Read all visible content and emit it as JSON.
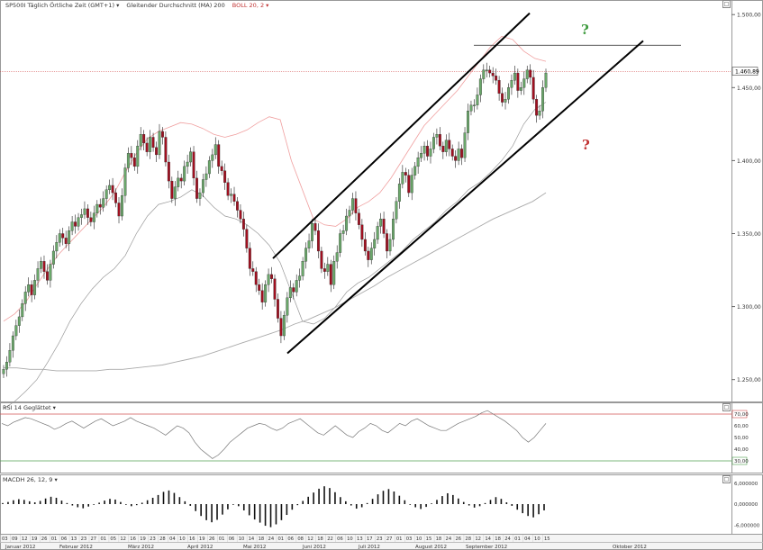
{
  "header": {
    "symbol": "SP500I Täglich Örtliche Zeit (GMT+1)",
    "indicator_ma": "Gleitender Durchschnitt (MA) 200",
    "indicator_boll": "BOLL 20, 2"
  },
  "rsi_header": "RSI 14 Geglättet",
  "macd_header": "MACDH 26, 12, 9",
  "question_up": "?",
  "question_down": "?",
  "colors": {
    "up": "#6aa76a",
    "down": "#a01020",
    "boll": "#f0a0a0",
    "ma": "#aaaaaa",
    "rsi_hi": "#d05050",
    "rsi_lo": "#50a050",
    "q_up": "#3c9a3c",
    "q_down": "#c03030"
  },
  "icons": {
    "close": "close-icon",
    "dropdown": "dropdown-arrow-icon"
  },
  "close_glyph": "□",
  "chart_data": [
    {
      "type": "candlestick",
      "title": "SP500I",
      "ylim": [
        1235,
        1510
      ],
      "y_ticks": [
        "1.250,00",
        "1.300,00",
        "1.350,00",
        "1.400,00",
        "1.450,00",
        "1.500,00"
      ],
      "current_price_label": "1.460,89",
      "current_price": 1460.9,
      "resistance_level": 1479,
      "x_day_labels": [
        "03",
        "09",
        "12",
        "19",
        "26",
        "01",
        "06",
        "13",
        "23",
        "27",
        "01",
        "05",
        "12",
        "16",
        "19",
        "23",
        "28",
        "04",
        "10",
        "16",
        "19",
        "26",
        "01",
        "06",
        "10",
        "14",
        "18",
        "24",
        "01",
        "06",
        "08",
        "12",
        "18",
        "22",
        "06",
        "10",
        "13",
        "17",
        "23",
        "27",
        "01",
        "03",
        "10",
        "15",
        "18",
        "24",
        "26",
        "28",
        "12",
        "14",
        "18",
        "24",
        "01",
        "04",
        "10",
        "15"
      ],
      "x_month_labels": [
        "Januar 2012",
        "Februar 2012",
        "März 2012",
        "April 2012",
        "Mai 2012",
        "Juni 2012",
        "Juli 2012",
        "August 2012",
        "September 2012",
        "Oktober 2012"
      ],
      "closes": [
        1257,
        1262,
        1270,
        1280,
        1287,
        1293,
        1302,
        1310,
        1315,
        1308,
        1318,
        1326,
        1331,
        1324,
        1318,
        1329,
        1338,
        1344,
        1350,
        1347,
        1343,
        1352,
        1358,
        1355,
        1361,
        1363,
        1367,
        1361,
        1358,
        1364,
        1370,
        1368,
        1374,
        1380,
        1383,
        1378,
        1371,
        1362,
        1376,
        1395,
        1405,
        1402,
        1396,
        1410,
        1418,
        1412,
        1406,
        1416,
        1409,
        1404,
        1420,
        1416,
        1399,
        1386,
        1374,
        1382,
        1388,
        1386,
        1396,
        1399,
        1406,
        1388,
        1374,
        1378,
        1387,
        1391,
        1400,
        1404,
        1411,
        1396,
        1393,
        1385,
        1376,
        1377,
        1372,
        1366,
        1360,
        1353,
        1340,
        1326,
        1324,
        1315,
        1311,
        1303,
        1315,
        1322,
        1319,
        1305,
        1292,
        1280,
        1294,
        1306,
        1313,
        1310,
        1318,
        1321,
        1331,
        1340,
        1345,
        1357,
        1352,
        1338,
        1326,
        1324,
        1329,
        1315,
        1331,
        1337,
        1350,
        1352,
        1362,
        1366,
        1374,
        1364,
        1356,
        1346,
        1338,
        1332,
        1340,
        1346,
        1355,
        1360,
        1350,
        1338,
        1346,
        1360,
        1372,
        1384,
        1392,
        1390,
        1378,
        1390,
        1396,
        1402,
        1405,
        1410,
        1403,
        1408,
        1416,
        1418,
        1410,
        1406,
        1414,
        1408,
        1403,
        1400,
        1408,
        1402,
        1419,
        1434,
        1438,
        1438,
        1445,
        1456,
        1462,
        1462,
        1460,
        1458,
        1455,
        1446,
        1440,
        1442,
        1450,
        1455,
        1460,
        1448,
        1450,
        1456,
        1462,
        1457,
        1442,
        1431,
        1434,
        1450,
        1460
      ],
      "ma200": [
        1258,
        1258,
        1257,
        1257,
        1256,
        1256,
        1256,
        1256,
        1257,
        1257,
        1258,
        1259,
        1260,
        1262,
        1264,
        1266,
        1269,
        1272,
        1275,
        1278,
        1281,
        1284,
        1288,
        1291,
        1295,
        1299,
        1304,
        1309,
        1314,
        1320,
        1325,
        1330,
        1335,
        1340,
        1345,
        1350,
        1355,
        1360,
        1364,
        1368,
        1372,
        1378
      ],
      "boll_upper": [
        1290,
        1295,
        1303,
        1315,
        1326,
        1336,
        1344,
        1352,
        1360,
        1368,
        1378,
        1392,
        1405,
        1415,
        1420,
        1423,
        1426,
        1425,
        1422,
        1418,
        1416,
        1418,
        1421,
        1426,
        1430,
        1428,
        1400,
        1380,
        1360,
        1356,
        1355,
        1360,
        1368,
        1372,
        1378,
        1388,
        1400,
        1412,
        1424,
        1432,
        1440,
        1448,
        1458,
        1468,
        1478,
        1485,
        1483,
        1475,
        1470,
        1468
      ],
      "boll_lower": [
        1230,
        1235,
        1242,
        1250,
        1262,
        1275,
        1290,
        1302,
        1312,
        1320,
        1326,
        1335,
        1350,
        1362,
        1370,
        1372,
        1375,
        1380,
        1376,
        1368,
        1362,
        1360,
        1356,
        1350,
        1342,
        1330,
        1310,
        1290,
        1288,
        1292,
        1300,
        1310,
        1316,
        1320,
        1326,
        1332,
        1338,
        1346,
        1352,
        1358,
        1366,
        1372,
        1380,
        1385,
        1392,
        1400,
        1410,
        1425,
        1435,
        1440
      ],
      "channel_upper": [
        [
          1333,
          1501
        ]
      ],
      "channel_lower": [
        [
          1268,
          1482
        ]
      ]
    },
    {
      "type": "line",
      "title": "RSI 14 Geglättet",
      "ylim": [
        20,
        80
      ],
      "y_ticks": [
        "70,00",
        "60,00",
        "50,00",
        "40,00",
        "30,00"
      ],
      "levels": [
        70,
        30
      ],
      "level_labels": [
        "70,00",
        "30,00"
      ],
      "values": [
        62,
        60,
        63,
        65,
        67,
        66,
        64,
        62,
        60,
        57,
        59,
        62,
        64,
        61,
        58,
        61,
        64,
        66,
        63,
        60,
        62,
        64,
        67,
        64,
        62,
        60,
        58,
        55,
        52,
        56,
        60,
        58,
        54,
        46,
        40,
        36,
        32,
        35,
        40,
        46,
        50,
        54,
        58,
        60,
        62,
        61,
        58,
        56,
        58,
        62,
        64,
        66,
        62,
        58,
        54,
        52,
        56,
        60,
        56,
        52,
        50,
        55,
        58,
        62,
        60,
        56,
        54,
        58,
        62,
        60,
        64,
        66,
        63,
        60,
        58,
        56,
        56,
        59,
        62,
        64,
        66,
        68,
        71,
        73,
        70,
        67,
        64,
        60,
        56,
        50,
        46,
        50,
        56,
        62
      ]
    },
    {
      "type": "bar",
      "title": "MACDH 26, 12, 9",
      "ylim": [
        -8.5,
        8.5
      ],
      "y_ticks": [
        "6,000000",
        "0,000000",
        "-6,000000"
      ],
      "values": [
        0.3,
        0.6,
        1.1,
        1.4,
        1.2,
        0.8,
        0.5,
        0.9,
        1.6,
        2.1,
        1.8,
        1.0,
        0.3,
        -0.4,
        -0.9,
        -1.2,
        -0.7,
        -0.2,
        0.4,
        1.0,
        1.5,
        1.3,
        0.6,
        -0.2,
        -0.6,
        -0.3,
        0.4,
        1.1,
        1.8,
        2.6,
        3.5,
        3.9,
        3.2,
        2.0,
        0.8,
        -0.5,
        -2.0,
        -3.4,
        -4.6,
        -5.2,
        -4.5,
        -3.0,
        -1.5,
        -0.2,
        -0.6,
        -1.8,
        -3.2,
        -4.4,
        -5.3,
        -6.2,
        -6.6,
        -5.8,
        -4.6,
        -3.1,
        -1.6,
        -0.3,
        0.9,
        2.1,
        3.3,
        4.4,
        5.1,
        4.6,
        3.4,
        2.0,
        0.8,
        -0.4,
        -1.3,
        -0.9,
        0.3,
        1.5,
        2.8,
        3.8,
        4.3,
        3.6,
        2.4,
        1.1,
        -0.2,
        -0.9,
        -1.4,
        -0.8,
        0.2,
        1.2,
        2.3,
        3.1,
        2.6,
        1.6,
        0.6,
        -0.4,
        -1.0,
        -0.6,
        0.3,
        1.2,
        2.0,
        1.5,
        0.5,
        -0.5,
        -1.6,
        -2.6,
        -3.4,
        -3.8,
        -2.9,
        -1.8
      ]
    }
  ]
}
